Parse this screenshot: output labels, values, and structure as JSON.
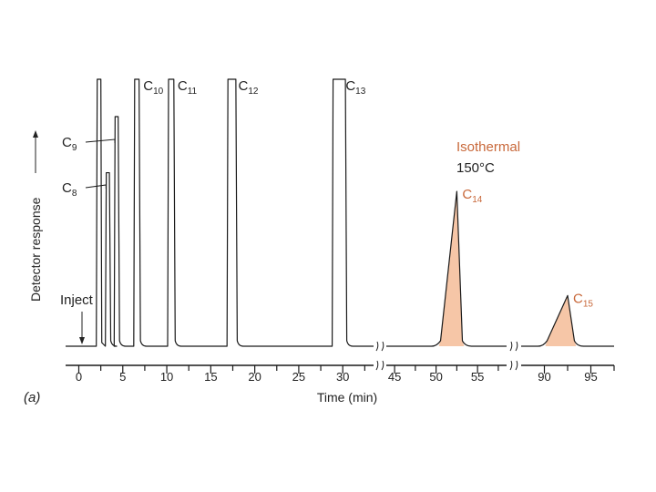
{
  "chart_data": {
    "type": "line",
    "title": "",
    "panel_label": "(a)",
    "xlabel": "Time (min)",
    "ylabel": "Detector response",
    "ylim": [
      0,
      100
    ],
    "x_segments": [
      {
        "ticks": [
          0,
          5,
          10,
          15,
          20,
          25,
          30
        ],
        "range": [
          -1.5,
          33.5
        ]
      },
      {
        "ticks": [
          45,
          50,
          55
        ],
        "range": [
          44,
          58.5
        ]
      },
      {
        "ticks": [
          90,
          95
        ],
        "range": [
          87.5,
          97.5
        ]
      }
    ],
    "tick_labels": [
      "0",
      "5",
      "10",
      "15",
      "20",
      "25",
      "30",
      "45",
      "50",
      "55",
      "90",
      "95"
    ],
    "annotations": {
      "inject": "Inject",
      "inject_time": 0,
      "isothermal": "Isothermal",
      "temperature": "150°C"
    },
    "peaks": [
      {
        "name": "C",
        "sub": "8",
        "time": 3.3,
        "height": 65,
        "width": 0.35,
        "label_side": "left"
      },
      {
        "name": "C",
        "sub": "9",
        "time": 4.3,
        "height": 86,
        "width": 0.35,
        "label_side": "left"
      },
      {
        "name": "C",
        "sub": "10",
        "time": 6.6,
        "height": 100,
        "width": 0.5,
        "label_side": "right",
        "truncated": true
      },
      {
        "name": "C",
        "sub": "11",
        "time": 10.5,
        "height": 100,
        "width": 0.6,
        "label_side": "right",
        "truncated": true
      },
      {
        "name": "C",
        "sub": "12",
        "time": 17.4,
        "height": 100,
        "width": 0.9,
        "label_side": "right",
        "truncated": true
      },
      {
        "name": "C",
        "sub": "13",
        "time": 29.6,
        "height": 100,
        "width": 1.4,
        "label_side": "right",
        "truncated": true
      },
      {
        "name": "C",
        "sub": "14",
        "time": 52.5,
        "height": 58,
        "width": 2.4,
        "label_side": "right",
        "isothermal": true
      },
      {
        "name": "C",
        "sub": "15",
        "time": 92.5,
        "height": 19,
        "width": 2.6,
        "label_side": "right",
        "isothermal": true
      }
    ],
    "colors": {
      "line": "#1a1a1a",
      "fill": "#f6c6a7",
      "accent": "#c8683a"
    }
  }
}
